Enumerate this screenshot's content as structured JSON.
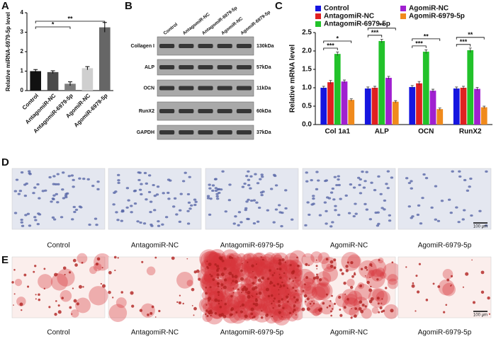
{
  "panel_labels": [
    "A",
    "B",
    "C",
    "D",
    "E"
  ],
  "chart_data": [
    {
      "type": "bar",
      "ylabel": "Relative miRNA-6979-5p level",
      "categories": [
        "Control",
        "AntagomiR-NC",
        "AntagomiR-6979-5p",
        "AgomiR-NC",
        "AgomiR-6979-5p"
      ],
      "values": [
        1.0,
        0.95,
        0.35,
        1.15,
        3.25
      ],
      "errors": [
        0.08,
        0.07,
        0.1,
        0.08,
        0.25
      ],
      "colors": [
        "#111111",
        "#4a4a4a",
        "#7d7d7d",
        "#cfcfcf",
        "#666666"
      ],
      "ylim": [
        0,
        4
      ],
      "yticks": [
        0,
        1,
        2,
        3,
        4
      ],
      "annotations": [
        "*",
        "**"
      ]
    },
    {
      "type": "grouped-bar",
      "ylabel": "Relative mRNA level",
      "categories": [
        "Col 1a1",
        "ALP",
        "OCN",
        "RunX2"
      ],
      "series": [
        {
          "name": "Control",
          "color": "#1515e0",
          "values": [
            1.0,
            0.98,
            1.02,
            0.98
          ],
          "errors": [
            0.04,
            0.04,
            0.04,
            0.04
          ]
        },
        {
          "name": "AntagomiR-NC",
          "color": "#e02020",
          "values": [
            1.15,
            1.0,
            1.12,
            1.0
          ],
          "errors": [
            0.05,
            0.04,
            0.05,
            0.04
          ]
        },
        {
          "name": "AntagomiR-6979-5p",
          "color": "#22c22a",
          "values": [
            1.92,
            2.27,
            1.98,
            2.02
          ],
          "errors": [
            0.05,
            0.05,
            0.05,
            0.06
          ]
        },
        {
          "name": "AgomiR-NC",
          "color": "#a020d0",
          "values": [
            1.17,
            1.27,
            0.92,
            0.97
          ],
          "errors": [
            0.04,
            0.04,
            0.04,
            0.04
          ]
        },
        {
          "name": "AgomiR-6979-5p",
          "color": "#f08a1c",
          "values": [
            0.67,
            0.62,
            0.42,
            0.47
          ],
          "errors": [
            0.03,
            0.03,
            0.03,
            0.03
          ]
        }
      ],
      "ylim": [
        0,
        2.5
      ],
      "yticks": [
        {
          "value": 0,
          "label": "0.0"
        },
        0.5,
        {
          "value": 1,
          "label": "1.0"
        },
        1.5,
        {
          "value": 2,
          "label": "2.0"
        },
        2.5
      ],
      "annotations": [
        [
          "***",
          "*"
        ],
        [
          "***",
          "**"
        ],
        [
          "***",
          "**"
        ],
        [
          "***",
          "**"
        ]
      ]
    }
  ],
  "blot": {
    "lanes": [
      "Control",
      "AntagomiR-NC",
      "AntagomiR-6979-5p",
      "AgomiR-NC",
      "AgomiR-6979-5p"
    ],
    "rows": [
      {
        "label": "Collagen I",
        "size": "130kDa"
      },
      {
        "label": "ALP",
        "size": "57kDa"
      },
      {
        "label": "OCN",
        "size": "11kDa"
      },
      {
        "label": "RunX2",
        "size": "60kDa"
      },
      {
        "label": "GAPDH",
        "size": "37kDa"
      }
    ]
  },
  "staining": [
    {
      "captions": [
        "Control",
        "AntagomiR-NC",
        "AntagomiR-6979-5p",
        "AgomiR-NC",
        "AgomiR-6979-5p"
      ],
      "scale_bar": "100 μm"
    },
    {
      "captions": [
        "Control",
        "AntagomiR-NC",
        "AntagomiR-6979-5p",
        "AgomiR-NC",
        "AgomiR-6979-5p"
      ],
      "scale_bar": "100 μm"
    }
  ]
}
